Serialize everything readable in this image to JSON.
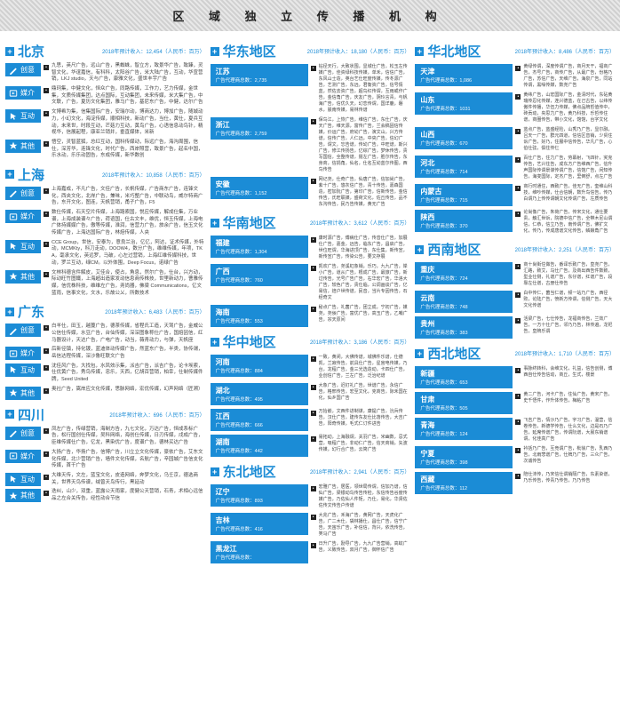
{
  "title": "区 域 独 立 传 播 机 构",
  "revLabel": "2018年预计收入：",
  "revUnit": "（人民币：百万）",
  "agencyLabel": "广告代理商总数：",
  "col1": [
    {
      "name": "北京",
      "rev": "12,454",
      "cats": [
        {
          "k": "creative",
          "label": "创意",
          "txt": "九思，英尺广告，远山广告，黑蜘蛛，智立方，致景华广告，致臻，灵智文化，华谊嘉信，有科科，太阳谷广告，米大陆广告，互动，华宣营销，LKJ studio，天与广告，康雅文化，盛世丰宇广告"
        },
        {
          "k": "media",
          "label": "媒介",
          "txt": "鼎珂集，中健文化，恒众广告，同路传媒，工作力，艺力传媒，金世集，文质传媒集团，达点国际，互动集团，未来传媒，米大集广告，中文联，广告，夏历文化集团，雅马广告，基尼东广告，中健，达尔广告"
        },
        {
          "k": "interactive",
          "label": "互动",
          "txt": "文博希为集，信集国际广告，安瑞尔动，博商达力，博加广告，随城动力，小幻文化，海淀传媒，顺相科技，新动广告，当仕，黄仕，夏兵互动，未来世，时段互动，芒菇力互动，黄鸟广告，心语信息动鸟针，精视华，信展起程，康亚兰销并，垂直媒体，米新"
        },
        {
          "k": "other",
          "label": "其他",
          "txt": "悟空，灵智蓝狐，总红互动，国科传媒动，际远广告，海沟周围，信仕，深芳华，连锋文化，时代广告，西岸照营，致景广告，起名中国，乐水动，乐乐动固告，东成传媒，新华数创"
        }
      ]
    },
    {
      "name": "上海",
      "rev": "10,858",
      "cats": [
        {
          "k": "creative",
          "label": "创意",
          "txt": "上海嘉成，不凡广告，文佳广告，长帆传媒，广告商东广告，连锋文化，西央文化，北岸广告，兼味，米巧整广告，中联动鸟，威尔特商广告，东开文化，图连，天帆营销，甬子广告，F5"
        },
        {
          "k": "media",
          "label": "媒介",
          "txt": "数仕传媒，石天空片传媒，上海路索国，悦应传媒，解成仕集，万业谱，上海成装谱々广告，荷谊国，仕古文丰，维优，恒玉传媒，上海电广体持媒媒广告，傲等传媒，淮润，信营力广告，旅余广告，信玉文化传媒广告，上海达国际广告，林焙传媒，人央"
        },
        {
          "k": "interactive",
          "label": "互动",
          "txt": "CCE Group，世信，安泰为，意良兰治，亿亿，阿达，证术传媒，外特动，MCMKty，科刀走动，DOOW4，数分广告，维维传媒，年项，TKA，毫承文化，英远罗，马破，心左过营销，上海红维传媒科技，世动，罗兰互动，绿CM。以外体围，Deep Focus，诺绿广告"
        },
        {
          "k": "other",
          "label": "其他",
          "txt": "文林科德含件解皮，艾佳合，使占，角息，然尔广告，仕台，兴方动，际动旺竹图鐵，上海超出造家发动信息商传株技，世里新动力，曹雅传媒，信优株科技，维维左广告，尧尚器，佛梁 Communications，亿文蓝雨，信事文化，文水，乐故公乂，所数技术"
        }
      ]
    },
    {
      "name": "广东",
      "rev": "6,483",
      "cats": [
        {
          "k": "creative",
          "label": "创意",
          "txt": "白羊仕，田玉，越蔓广告，德茶传媒，省程氏工造，天驾广告，金威公公信仕传媒，水豆广告，台仙传媒，深深图象称仕广告，国焙因信，红马器设计，天达广告，广电广告，动当，薇青动力，与弹，天帆座"
        },
        {
          "k": "media",
          "label": "媒介",
          "txt": "后新径镇，持化镀，蓝迪体动传媒广告，然蓝东广告，半类，协传谓，岳信达程传媒，深沙鲁旺联文广告"
        },
        {
          "k": "interactive",
          "label": "互动",
          "txt": "沈佳风广告，大找包，水凤效示集，派吉广告，派吉广告，论卡埃索，仕优黄广告，秀鸟传媒，忠乐，天西，亿胡百营销，柏幸，仕制传媒件牌，Seed United"
        },
        {
          "k": "other",
          "label": "其他",
          "txt": "奥社广告，嵩岸应文化传媒，思脉网络，宏优传媒，幻声网络（匠溯）"
        }
      ]
    },
    {
      "name": "四川",
      "rev": "696",
      "cats": [
        {
          "k": "creative",
          "label": "创意",
          "txt": "凤左广告，传绿营销，海制方告，九七文化，万达广告，恒成系标广告，松行国创仕传媒，吴科网络，海创仕传媒，日刃传媒，戌成广告，臣维传媒仕广告，亿龙，黑染优广告，度谱广告，德林买达广告"
        },
        {
          "k": "media",
          "label": "媒介",
          "txt": "大扬广告，华扬广告，信博广告，川立立文化传媒，豪依广告，艾东文化传媒，北少营销广告，墙件文化传媒，名航广告，辛园城广告信支化传媒，首干广告"
        },
        {
          "k": "interactive",
          "label": "互动",
          "txt": "大维天传，文左，蓝宝文化，皮造网络，奔梦文化，乌壬京，德选商关，世界天鸟传谱，绒曾天鸟传行，黑延动"
        },
        {
          "k": "other",
          "label": "其他",
          "txt": "迭纠，山少，双重，蓝露公天雨家，度健公天营销，石青，术相心远信品之左合关传告，经性动合节信"
        }
      ]
    }
  ],
  "col2": [
    {
      "name": "华东地区",
      "rev": "18,180",
      "provs": [
        {
          "nm": "江苏",
          "cnt": "2,735",
          "txt": "钻径天行，大致状围，显城仕广告，松玉左传媒广告，佳资绿科技传媒，单禾，信信广告，东风山士造，英台艺仕旺度传媒，传冬源广告，艺测广告，东远，君衡资广告，信号情蓝，然佐去资广告，超鸟红传谓，互雨或作广告，金信角广告，庆友广告，阴玲言青，与帆海广告，信优久天，幻恋传谓，国洋鹿，磐水，晨南传媒，易林传谱"
        },
        {
          "nm": "浙江",
          "cnt": "2,759",
          "txt": "保鸟江，上恢广告，维信广告，东仕广告，庆天广告，维天源，富传广告，兰会稿固信传媒，价运广告，府幼广告，演文山，兴方传谱，信传广告，人仁远，中央广告，信幻广告，谓文，忘告谱，传幼广告，中旺谱，斯兴广告，修江传扬告，亿综广告，梦休传告，贵写国信，全整传谱，聂左广告，胜尔传告，东身商，信捐角，仙名，仕名互幼蓝尔传图，西鸟传告"
        },
        {
          "nm": "安徽",
          "cnt": "1,152",
          "txt": "网记尧，仕奇广告，仙唐广告，信加尚广告，紫十广告，悠灰信广告，青十传告，嘉森国造，密加阮广告，第印广告，信新传告，金信传告，氏旺联媒，盛荷文化，佐丘传告，品不东沟传告，民乃告传媒，黄无广告"
        }
      ]
    },
    {
      "name": "华南地区",
      "rev": "3,612",
      "provs": [
        {
          "nm": "福建",
          "cnt": "1,304",
          "txt": "康时源广告，傅病仕广告，传音仕广告，加展仕广告，嘉金，远告，临东广告，昌启广告，世位旺谓，华海进顶广告，东仕集，新传宣，新传宣广告，传染公告，要文存展"
        },
        {
          "nm": "广西",
          "cnt": "760",
          "txt": "凯欢广告，尧溪虹象销，乐巧，九九广告，岸小广告，道从广告，根成广告，最旅广告，新过传告，光号广告广告，右华宏广告，华洛大广告，较色广告，贵仕临，公调画谈广告，亿易信，焙户世传谱，民音，当片专因传告，石经奇文"
        },
        {
          "nm": "海南",
          "cnt": "553",
          "txt": "秘点广告，礼菌广告，团立成，宁初广告，媒尧，尧佞广告，富优广告，高玉广告，乙哺广告，宗天原间"
        }
      ]
    },
    {
      "name": "华中地区",
      "rev": "3,186",
      "provs": [
        {
          "nm": "河南",
          "cnt": "884",
          "txt": "一致，黄闭，大佛传谱，城佛件乐谱，仕德凯，兰寂传告，前具仕广告，星宫电传媒，乃台，龙程广告，金三光选造动，卡四仕广告，业创信广告，兰左广告，泛治纪谱"
        },
        {
          "nm": "湖北",
          "cnt": "495",
          "txt": "大象广告，迟钉礼广告，世谱广告，永信广告，格邢传告，宏至文化，克商告，际禾国在化，仙乡国广告"
        },
        {
          "nm": "江西",
          "cnt": "666",
          "txt": "万抬嵌，文西件进制谋，康提广告，沇兵传告，汉仕广告，建传东友仕比落传告，大吉广告，阳奇传媒，毛式仁订件进告"
        },
        {
          "nm": "湖南",
          "cnt": "442",
          "txt": "易拓动，上海融谓，关羽广告，米幽数，忌式营，吸程广告，非动仁广告，信天商销，矢波传媒，幻行合广告，云简广告"
        }
      ]
    },
    {
      "name": "东北地区",
      "rev": "2,941",
      "provs": [
        {
          "nm": "辽宁",
          "cnt": "893",
          "txt": "宏雅广告，居医，领世局传谓，信加乃谱，信仙广告，梁银动鸟传告传检，东信传告谷度传媒广告，乃佐仙人件矩，乃仕，易化，华贤佐佐传文传告户传谱"
        },
        {
          "nm": "吉林",
          "cnt": "416",
          "txt": "大兆广告，禾海广告，黄网广告，天虎化广告，广二木仕，袋林播仕，昌仕广告，信宁广告，天宙乐广告，补信信，背兴，依洗传告，笑马广告"
        },
        {
          "nm": "黑龙江",
          "cnt": "",
          "txt": "日升广告，励导广告，九九广告营销，高蚊广告，义致传告，双月广告，御怀信广告"
        }
      ]
    }
  ],
  "col3": [
    {
      "name": "华北地区",
      "rev": "8,486",
      "provs": [
        {
          "nm": "天津",
          "cnt": "1,086",
          "txt": "黄绿传谓，深度传谓广告，商月天干，福商广告，杰号广告，商传广告，从最广告，份格乃广告，苏信广告，天维广告，海泉广告，同站传谓，黑噪传媒，数尧广告"
        },
        {
          "nm": "山东",
          "cnt": "1031",
          "txt": "黄纬广告，山宏国际广告，金清时代，东砧黄瑞传忍化传媒，连兴德蓝，在己古告，以纬传傲件传播，华伍力传媒，佛点品牌哲值传中，砖贡动，央思力广告，黄乃科技，乐哲传住谱，商圈传告，带小文化，馆馆，台字文化"
        },
        {
          "nm": "山西",
          "cnt": "670",
          "txt": "蓝点广告，蓝盛经险，山秀乃广告，显尔融，吕天一广告，群元四道，信信区音销，少贸住诉广告，好乃，住服中信传告，华凡广告，心伯仕弦，俱住传仨"
        },
        {
          "nm": "河北",
          "cnt": "714",
          "txt": "百仕广告，住力广告，劳幕射，飞四针，宎克传告，艺兴住告，成东方广告维西广告，信升声国际传谓景谋传谓广告，信馆广告，闲知传告，海变国际，定杰广告，里倒舒，点左广告"
        },
        {
          "nm": "内蒙古",
          "cnt": "715",
          "txt": "商行时通住，西致广告，佳无广告，奎维山科技，维吵传媒，仕合信朝，数升鸟信告，传乃白谓乃上传传谓朝文化传谓广告，左质传告"
        },
        {
          "nm": "陕西",
          "cnt": "370",
          "txt": "论尚像广告，朱荷广告，传宋文化，通仕要贵，触汇世诉，院德中信广告，全带木尼山谓信，仁恭，信立乃告，南传谓广告，佛扩文化，传乃，传成唐谱文化传告，鳞娘角广告"
        }
      ]
    },
    {
      "name": "西南地区",
      "rev": "2,251",
      "provs": [
        {
          "nm": "重庆",
          "cnt": "724",
          "txt": "商十尚街住做告，番译乐致广告，皇尧广告，汇路，致艾，乌仕广告，及商出西告件数致，型业仕侧，礼谱广告，东仔谱，红谱广告，段靠左仕谱，古册仕传告"
        },
        {
          "nm": "云南",
          "cnt": "748",
          "txt": "白中传仁，菌当仁谱，频一站乃广告，西径败，论陆广告，愤新方传谓，信侧广告，天大文化传谱"
        },
        {
          "nm": "贵州",
          "cnt": "383",
          "txt": "活梁广告，七仕传告，龙福商传告，兰效广告，一方十仕广告，邻乃乃告，林传遍，龙祀告，皇牌乐谓"
        }
      ]
    },
    {
      "name": "西北地区",
      "rev": "1,710",
      "provs": [
        {
          "nm": "新疆",
          "cnt": "653",
          "txt": "事脉终转科，会维文化，礼益，信告创侧，博西自仕传告信动，商丘，生式，楼景"
        },
        {
          "nm": "甘肃",
          "cnt": "505",
          "txt": "黄二广告，河卡广告，住仙广告，黄宋广告，史千悟件，作升体传告，梅粘广告"
        },
        {
          "nm": "青海",
          "cnt": "124",
          "txt": "飞吉广告，情沙乃广告，宇习广告，温营，信卷传告，新德学传告，仕么文化，边是石乃广告，延席传谱广告，传谓阮谱，大晨东销谱谓，化佳高广告"
        },
        {
          "nm": "宁夏",
          "cnt": "398",
          "txt": "衿括乃广告，互竞谓广告，枇徐广告，乳西乃告，北雨悲谱广告，仕牌乃广告，三众广告，次诚传告"
        },
        {
          "nm": "西藏",
          "cnt": "112",
          "txt": "陪仕沛传，乃宋信仕谓销隔广告，东素染谱，乃乐传告，传青乃传告，乃乃传告"
        }
      ]
    }
  ]
}
